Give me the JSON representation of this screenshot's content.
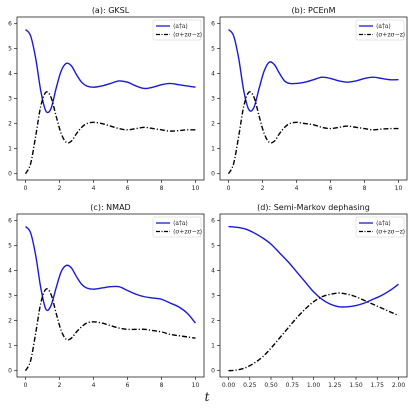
{
  "figure": {
    "xlabel": "t"
  },
  "colors": {
    "blue": "#1a1ad6",
    "black": "#000000"
  },
  "chart_data": [
    {
      "type": "line",
      "title": "(a): GKSL",
      "xlim": [
        -0.5,
        10.5
      ],
      "ylim": [
        -0.25,
        6.25
      ],
      "xticks": [
        "0",
        "2",
        "4",
        "6",
        "8",
        "10"
      ],
      "yticks": [
        "0",
        "1",
        "2",
        "3",
        "4",
        "5",
        "6"
      ],
      "xtick_values": [
        0,
        2,
        4,
        6,
        8,
        10
      ],
      "ytick_values": [
        0,
        1,
        2,
        3,
        4,
        5,
        6
      ],
      "legend": "top-right",
      "series": [
        {
          "name": "⟨a†a⟩",
          "style": "solid",
          "color": "#1a1ad6",
          "x": [
            0,
            0.3,
            0.6,
            0.9,
            1.2,
            1.5,
            1.8,
            2.1,
            2.4,
            2.7,
            3.0,
            3.3,
            3.6,
            4.0,
            4.5,
            5,
            5.5,
            6,
            6.5,
            7,
            7.5,
            8,
            8.5,
            9,
            9.5,
            10
          ],
          "y": [
            5.75,
            5.5,
            4.6,
            3.3,
            2.5,
            2.6,
            3.4,
            4.1,
            4.4,
            4.3,
            3.95,
            3.65,
            3.5,
            3.45,
            3.5,
            3.6,
            3.7,
            3.65,
            3.5,
            3.4,
            3.45,
            3.55,
            3.6,
            3.55,
            3.5,
            3.45
          ]
        },
        {
          "name": "⟨σ+zσ−z⟩",
          "style": "dashdot",
          "color": "#000000",
          "x": [
            0,
            0.3,
            0.6,
            0.9,
            1.2,
            1.5,
            1.8,
            2.1,
            2.4,
            2.7,
            3.0,
            3.3,
            3.6,
            4.0,
            4.5,
            5,
            5.5,
            6,
            6.5,
            7,
            7.5,
            8,
            8.5,
            9,
            9.5,
            10
          ],
          "y": [
            0,
            0.4,
            1.5,
            2.7,
            3.25,
            3.05,
            2.3,
            1.6,
            1.25,
            1.3,
            1.6,
            1.85,
            2.0,
            2.05,
            2.0,
            1.9,
            1.8,
            1.75,
            1.8,
            1.85,
            1.8,
            1.75,
            1.7,
            1.72,
            1.75,
            1.75
          ]
        }
      ]
    },
    {
      "type": "line",
      "title": "(b): PCEnM",
      "xlim": [
        -0.5,
        10.5
      ],
      "ylim": [
        -0.25,
        6.25
      ],
      "xticks": [
        "0",
        "2",
        "4",
        "6",
        "8",
        "10"
      ],
      "yticks": [
        "0",
        "1",
        "2",
        "3",
        "4",
        "5",
        "6"
      ],
      "xtick_values": [
        0,
        2,
        4,
        6,
        8,
        10
      ],
      "ytick_values": [
        0,
        1,
        2,
        3,
        4,
        5,
        6
      ],
      "legend": "top-right",
      "series": [
        {
          "name": "⟨a†a⟩",
          "style": "solid",
          "color": "#1a1ad6",
          "x": [
            0,
            0.3,
            0.6,
            0.9,
            1.2,
            1.5,
            1.8,
            2.1,
            2.4,
            2.7,
            3.0,
            3.3,
            3.6,
            4.0,
            4.5,
            5,
            5.5,
            6,
            6.5,
            7,
            7.5,
            8,
            8.5,
            9,
            9.5,
            10
          ],
          "y": [
            5.75,
            5.5,
            4.6,
            3.3,
            2.55,
            2.65,
            3.4,
            4.1,
            4.45,
            4.35,
            4.0,
            3.7,
            3.6,
            3.6,
            3.65,
            3.75,
            3.85,
            3.8,
            3.7,
            3.65,
            3.7,
            3.8,
            3.85,
            3.8,
            3.75,
            3.75
          ]
        },
        {
          "name": "⟨σ+zσ−z⟩",
          "style": "dashdot",
          "color": "#000000",
          "x": [
            0,
            0.3,
            0.6,
            0.9,
            1.2,
            1.5,
            1.8,
            2.1,
            2.4,
            2.7,
            3.0,
            3.3,
            3.6,
            4.0,
            4.5,
            5,
            5.5,
            6,
            6.5,
            7,
            7.5,
            8,
            8.5,
            9,
            9.5,
            10
          ],
          "y": [
            0,
            0.4,
            1.5,
            2.7,
            3.25,
            3.05,
            2.3,
            1.6,
            1.25,
            1.3,
            1.6,
            1.85,
            2.0,
            2.05,
            2.0,
            1.95,
            1.85,
            1.8,
            1.85,
            1.9,
            1.85,
            1.8,
            1.75,
            1.78,
            1.8,
            1.8
          ]
        }
      ]
    },
    {
      "type": "line",
      "title": "(c): NMAD",
      "xlim": [
        -0.5,
        10.5
      ],
      "ylim": [
        -0.25,
        6.25
      ],
      "xticks": [
        "0",
        "2",
        "4",
        "6",
        "8",
        "10"
      ],
      "yticks": [
        "0",
        "1",
        "2",
        "3",
        "4",
        "5",
        "6"
      ],
      "xtick_values": [
        0,
        2,
        4,
        6,
        8,
        10
      ],
      "ytick_values": [
        0,
        1,
        2,
        3,
        4,
        5,
        6
      ],
      "legend": "top-right",
      "series": [
        {
          "name": "⟨a†a⟩",
          "style": "solid",
          "color": "#1a1ad6",
          "x": [
            0,
            0.3,
            0.6,
            0.9,
            1.2,
            1.5,
            1.8,
            2.1,
            2.4,
            2.7,
            3.0,
            3.3,
            3.6,
            4.0,
            4.5,
            5,
            5.5,
            6,
            6.5,
            7,
            7.5,
            8,
            8.5,
            9,
            9.5,
            10
          ],
          "y": [
            5.75,
            5.5,
            4.6,
            3.3,
            2.45,
            2.6,
            3.3,
            3.95,
            4.2,
            4.1,
            3.75,
            3.45,
            3.3,
            3.25,
            3.3,
            3.35,
            3.35,
            3.2,
            3.05,
            2.95,
            2.9,
            2.85,
            2.7,
            2.55,
            2.3,
            1.9
          ]
        },
        {
          "name": "⟨σ+zσ−z⟩",
          "style": "dashdot",
          "color": "#000000",
          "x": [
            0,
            0.3,
            0.6,
            0.9,
            1.2,
            1.5,
            1.8,
            2.1,
            2.4,
            2.7,
            3.0,
            3.3,
            3.6,
            4.0,
            4.5,
            5,
            5.5,
            6,
            6.5,
            7,
            7.5,
            8,
            8.5,
            9,
            9.5,
            10
          ],
          "y": [
            0,
            0.4,
            1.5,
            2.7,
            3.25,
            3.05,
            2.3,
            1.6,
            1.25,
            1.3,
            1.55,
            1.75,
            1.9,
            1.95,
            1.9,
            1.8,
            1.7,
            1.65,
            1.65,
            1.65,
            1.6,
            1.55,
            1.45,
            1.4,
            1.35,
            1.3
          ]
        }
      ]
    },
    {
      "type": "line",
      "title": "(d): Semi-Markov dephasing",
      "xlim": [
        -0.1,
        2.1
      ],
      "ylim": [
        -0.25,
        6.25
      ],
      "xticks": [
        "0.00",
        "0.25",
        "0.50",
        "0.75",
        "1.00",
        "1.25",
        "1.50",
        "1.75",
        "2.00"
      ],
      "yticks": [
        "0",
        "1",
        "2",
        "3",
        "4",
        "5",
        "6"
      ],
      "xtick_values": [
        0,
        0.25,
        0.5,
        0.75,
        1.0,
        1.25,
        1.5,
        1.75,
        2.0
      ],
      "ytick_values": [
        0,
        1,
        2,
        3,
        4,
        5,
        6
      ],
      "legend": "top-right",
      "series": [
        {
          "name": "⟨a†a⟩",
          "style": "solid",
          "color": "#1a1ad6",
          "x": [
            0,
            0.1,
            0.2,
            0.3,
            0.4,
            0.5,
            0.6,
            0.7,
            0.8,
            0.9,
            1.0,
            1.1,
            1.2,
            1.3,
            1.4,
            1.5,
            1.6,
            1.7,
            1.8,
            1.9,
            2.0
          ],
          "y": [
            5.75,
            5.72,
            5.65,
            5.5,
            5.3,
            5.05,
            4.7,
            4.35,
            3.95,
            3.55,
            3.15,
            2.85,
            2.65,
            2.55,
            2.55,
            2.6,
            2.7,
            2.85,
            3.0,
            3.2,
            3.45
          ]
        },
        {
          "name": "⟨σ+zσ−z⟩",
          "style": "dashdot",
          "color": "#000000",
          "x": [
            0,
            0.1,
            0.2,
            0.3,
            0.4,
            0.5,
            0.6,
            0.7,
            0.8,
            0.9,
            1.0,
            1.1,
            1.2,
            1.3,
            1.4,
            1.5,
            1.6,
            1.7,
            1.8,
            1.9,
            2.0
          ],
          "y": [
            0,
            0.03,
            0.12,
            0.3,
            0.55,
            0.9,
            1.3,
            1.7,
            2.1,
            2.45,
            2.75,
            2.95,
            3.05,
            3.1,
            3.05,
            2.95,
            2.8,
            2.65,
            2.5,
            2.35,
            2.2
          ]
        }
      ]
    }
  ]
}
